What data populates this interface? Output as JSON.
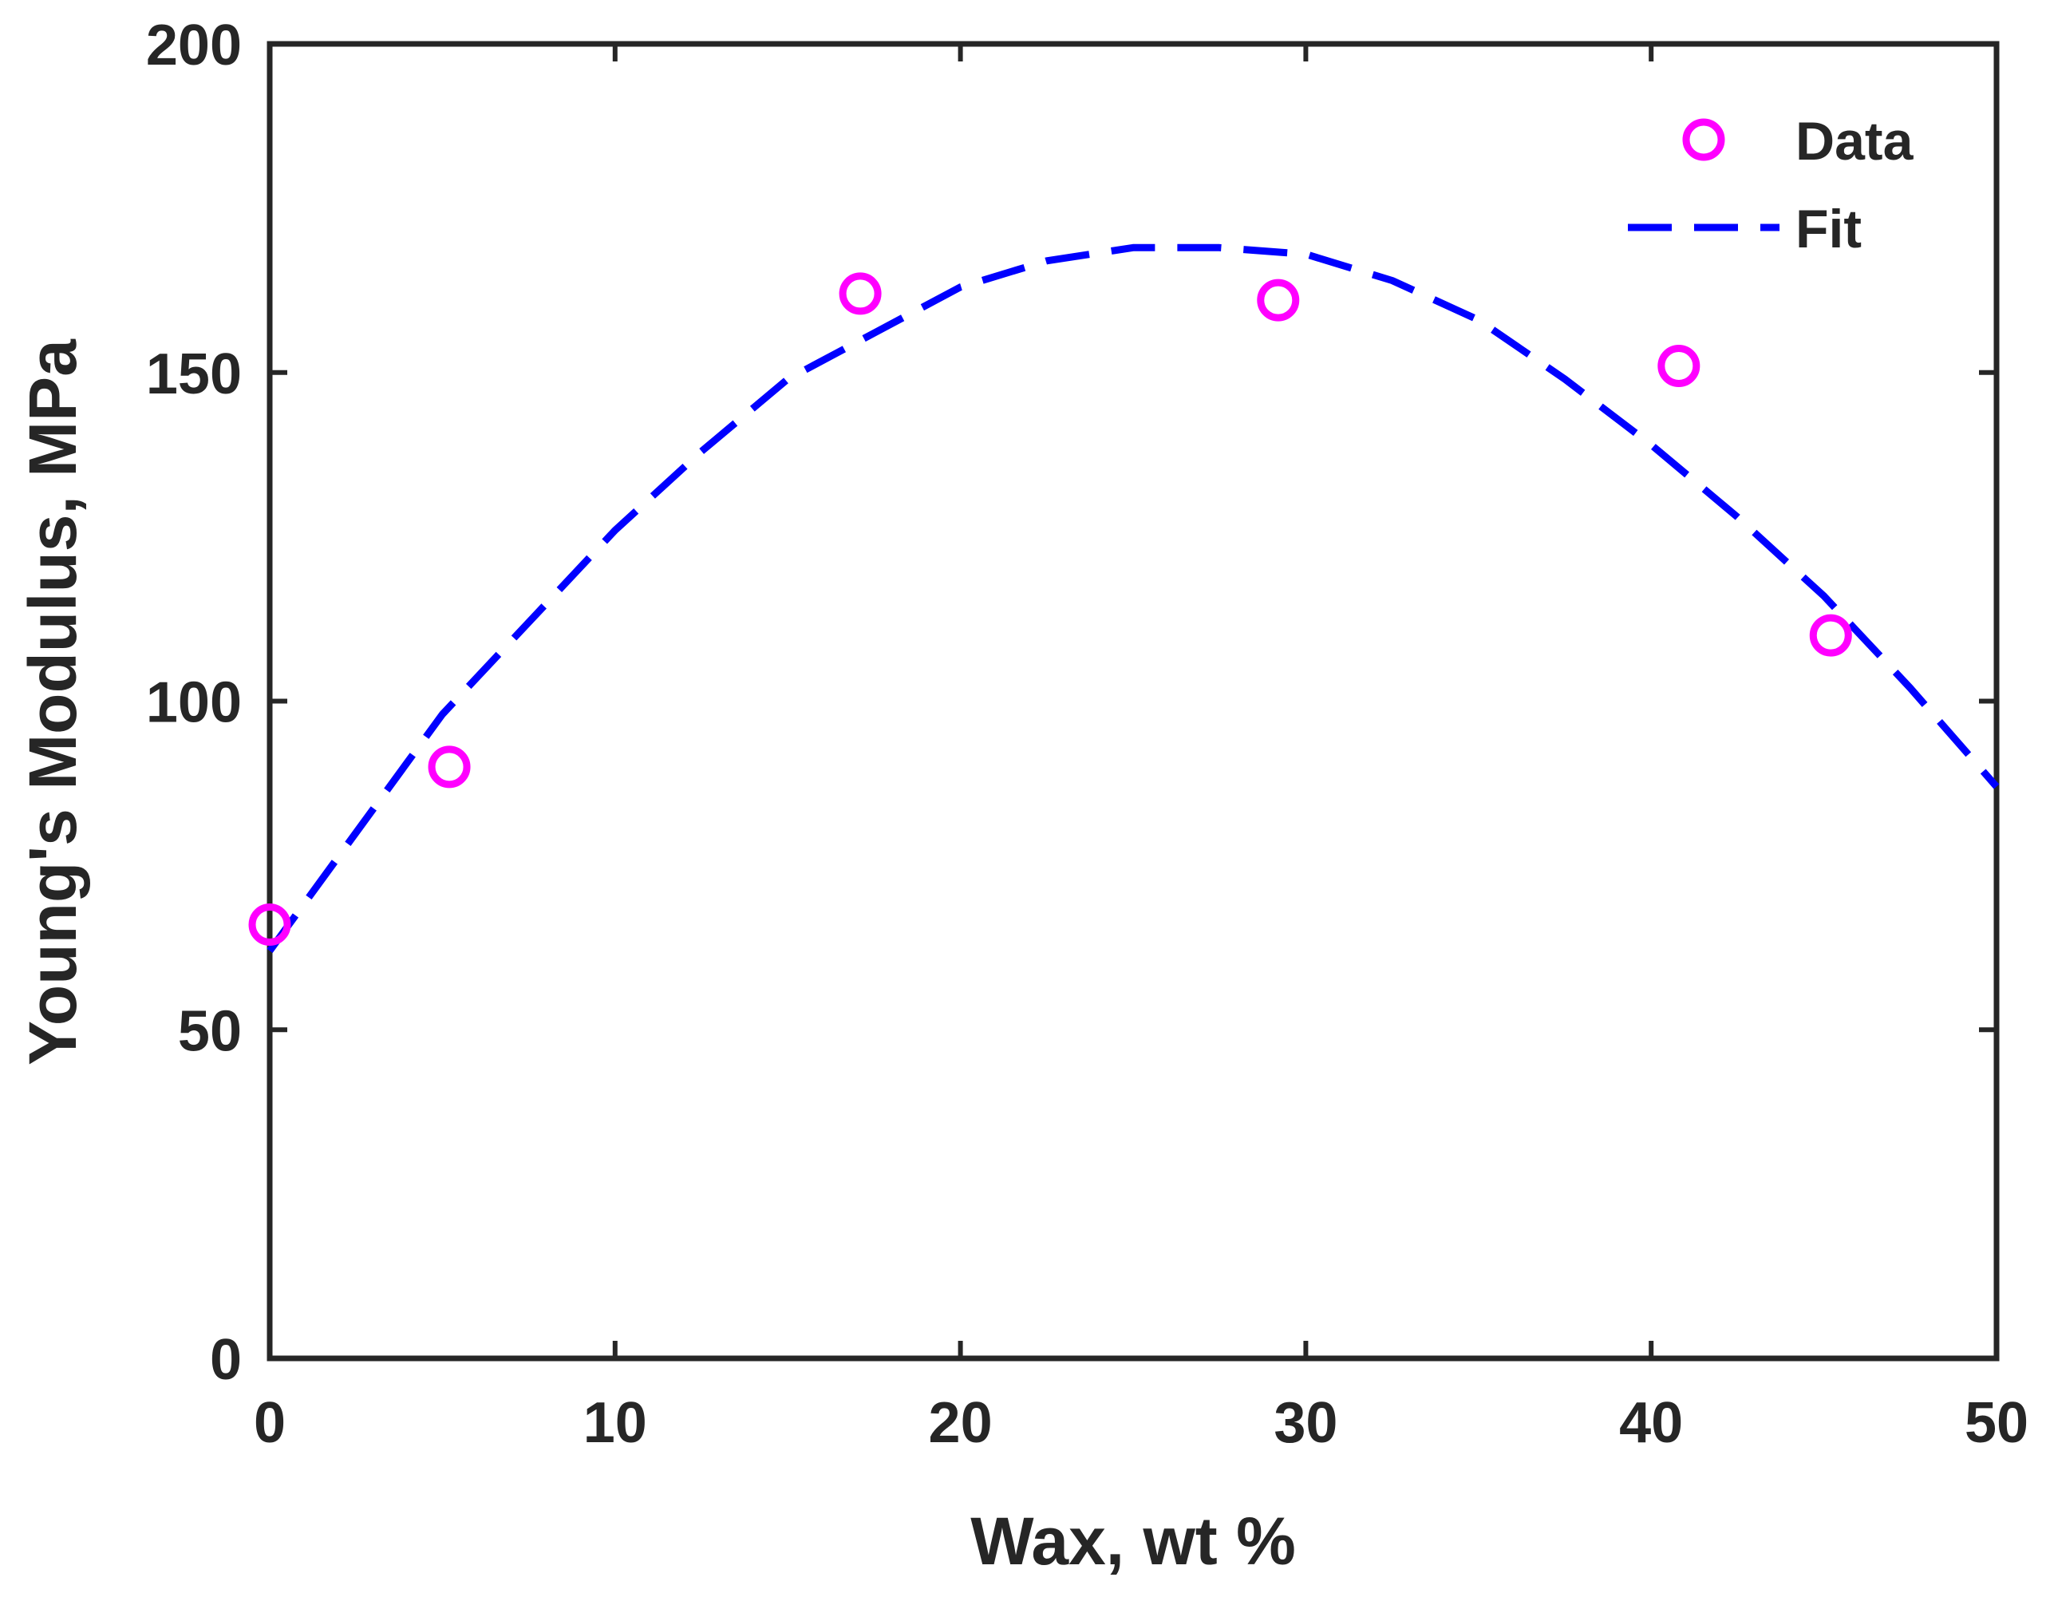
{
  "chart_data": {
    "type": "scatter",
    "title": "",
    "xlabel": "Wax, wt %",
    "ylabel": "Young's Modulus, MPa",
    "xlim": [
      0,
      50
    ],
    "ylim": [
      0,
      200
    ],
    "xticks": [
      0,
      10,
      20,
      30,
      40,
      50
    ],
    "yticks": [
      0,
      50,
      100,
      150,
      200
    ],
    "xtick_labels": [
      "0",
      "10",
      "20",
      "30",
      "40",
      "50"
    ],
    "ytick_labels": [
      "0",
      "50",
      "100",
      "150",
      "200"
    ],
    "grid": false,
    "legend_position": "top-right",
    "series": [
      {
        "name": "Data",
        "kind": "markers",
        "marker": "circle",
        "color": "#ff00ff",
        "x": [
          0,
          5.2,
          17.1,
          29.2,
          40.8,
          45.2
        ],
        "y": [
          66,
          90,
          162,
          161,
          151,
          110
        ]
      },
      {
        "name": "Fit",
        "kind": "line",
        "style": "dashed",
        "color": "#0000ff",
        "x": [
          0,
          2.5,
          5,
          7.5,
          10,
          12.5,
          15,
          17.5,
          20,
          22.5,
          25,
          27.5,
          30,
          32.5,
          35,
          37.5,
          40,
          42.5,
          45,
          47.5,
          50
        ],
        "y": [
          62,
          80,
          98,
          112,
          126,
          138,
          149,
          156,
          163,
          167,
          169,
          169,
          168,
          164,
          158,
          149,
          139,
          128,
          116,
          102,
          87
        ]
      }
    ],
    "legend": [
      {
        "label": "Data",
        "series": 0
      },
      {
        "label": "Fit",
        "series": 1
      }
    ]
  }
}
